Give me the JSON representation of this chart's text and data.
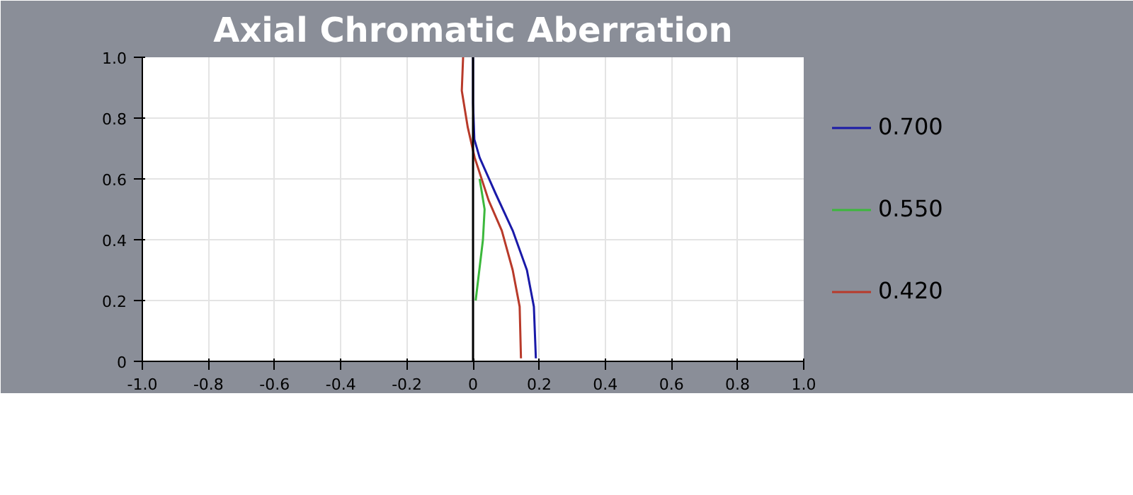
{
  "chart_data": {
    "type": "line",
    "title": "Axial Chromatic Aberration",
    "xlim": [
      -1.0,
      1.0
    ],
    "ylim": [
      0,
      1.0
    ],
    "xticks": [
      {
        "value": -1.0,
        "label": "-1.0"
      },
      -0.8,
      -0.6,
      -0.4,
      -0.2,
      0,
      0.2,
      0.4,
      0.6,
      0.8,
      {
        "value": 1.0,
        "label": "1.0"
      }
    ],
    "yticks": [
      0,
      0.2,
      0.4,
      0.6,
      0.8,
      {
        "value": 1.0,
        "label": "1.0"
      }
    ],
    "grid": true,
    "legend": "right",
    "marker": "none",
    "line_style": "solid",
    "ref_lines": [
      {
        "axis": "x",
        "value": 0,
        "color": "#000000"
      }
    ],
    "series": [
      {
        "name": "0.700",
        "color": "#1a1aa8",
        "x": [
          0.19,
          0.184,
          0.163,
          0.12,
          0.069,
          0.02,
          0.004,
          0.0,
          0.0
        ],
        "values": [
          0.01,
          0.18,
          0.3,
          0.43,
          0.55,
          0.67,
          0.73,
          0.85,
          1.0
        ]
      },
      {
        "name": "0.550",
        "color": "#3cb83c",
        "x": [
          null,
          0.008,
          0.03,
          0.035,
          0.02,
          null,
          null,
          null,
          null
        ],
        "values": [
          null,
          0.2,
          0.4,
          0.5,
          0.6,
          null,
          null,
          null,
          null
        ]
      },
      {
        "name": "0.420",
        "color": "#b83a2a",
        "x": [
          0.145,
          0.141,
          0.12,
          0.087,
          0.047,
          0.005,
          -0.016,
          -0.034,
          -0.03
        ],
        "values": [
          0.01,
          0.18,
          0.3,
          0.43,
          0.53,
          0.67,
          0.77,
          0.89,
          1.0
        ]
      }
    ]
  }
}
